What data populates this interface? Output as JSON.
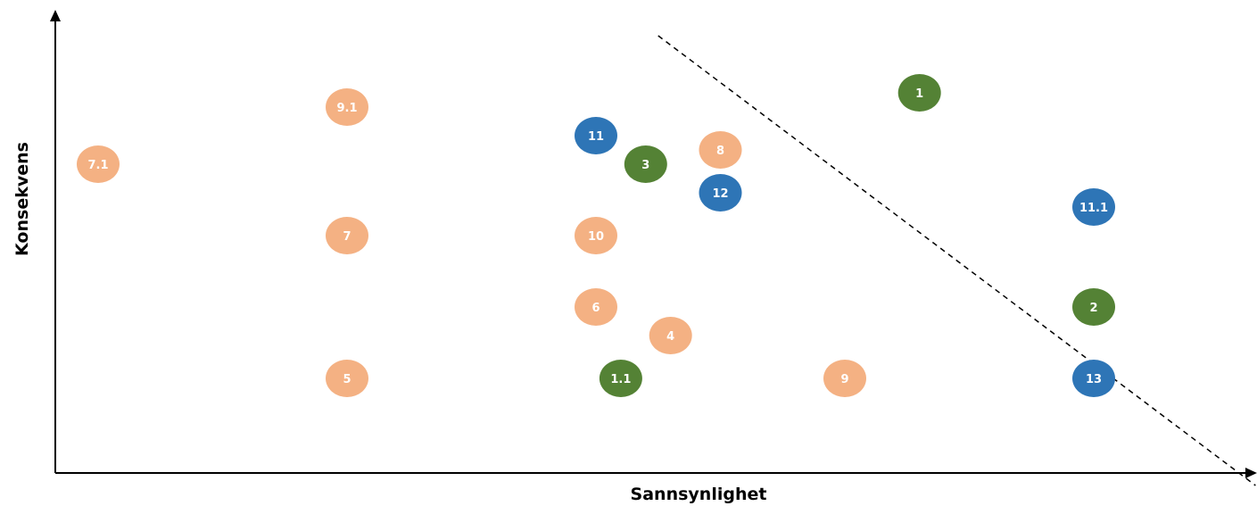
{
  "chart_data": {
    "type": "scatter",
    "title": "",
    "xlabel": "Sannsynlighet",
    "ylabel": "Konsekvens",
    "grid": false,
    "legend": "none",
    "colors": {
      "orange": "#f4b183",
      "blue": "#2e75b6",
      "green": "#548235"
    },
    "points": [
      {
        "label": "7.1",
        "x": 1.0,
        "y": 6.6,
        "color": "orange"
      },
      {
        "label": "9.1",
        "x": 3.0,
        "y": 7.4,
        "color": "orange"
      },
      {
        "label": "7",
        "x": 3.0,
        "y": 5.6,
        "color": "orange"
      },
      {
        "label": "5",
        "x": 3.0,
        "y": 3.6,
        "color": "orange"
      },
      {
        "label": "11",
        "x": 5.0,
        "y": 7.0,
        "color": "blue"
      },
      {
        "label": "10",
        "x": 5.0,
        "y": 5.6,
        "color": "orange"
      },
      {
        "label": "6",
        "x": 5.0,
        "y": 4.6,
        "color": "orange"
      },
      {
        "label": "3",
        "x": 5.4,
        "y": 6.6,
        "color": "green"
      },
      {
        "label": "1.1",
        "x": 5.2,
        "y": 3.6,
        "color": "green"
      },
      {
        "label": "4",
        "x": 5.6,
        "y": 4.2,
        "color": "orange"
      },
      {
        "label": "8",
        "x": 6.0,
        "y": 6.8,
        "color": "orange"
      },
      {
        "label": "12",
        "x": 6.0,
        "y": 6.2,
        "color": "blue"
      },
      {
        "label": "9",
        "x": 7.0,
        "y": 3.6,
        "color": "orange"
      },
      {
        "label": "1",
        "x": 7.6,
        "y": 7.6,
        "color": "green"
      },
      {
        "label": "11.1",
        "x": 9.0,
        "y": 6.0,
        "color": "blue"
      },
      {
        "label": "2",
        "x": 9.0,
        "y": 4.6,
        "color": "green"
      },
      {
        "label": "13",
        "x": 9.0,
        "y": 3.6,
        "color": "blue"
      }
    ],
    "threshold_line": {
      "x": [
        5.5,
        10.3
      ],
      "y": [
        8.4,
        2.1
      ],
      "style": "dashed"
    }
  }
}
